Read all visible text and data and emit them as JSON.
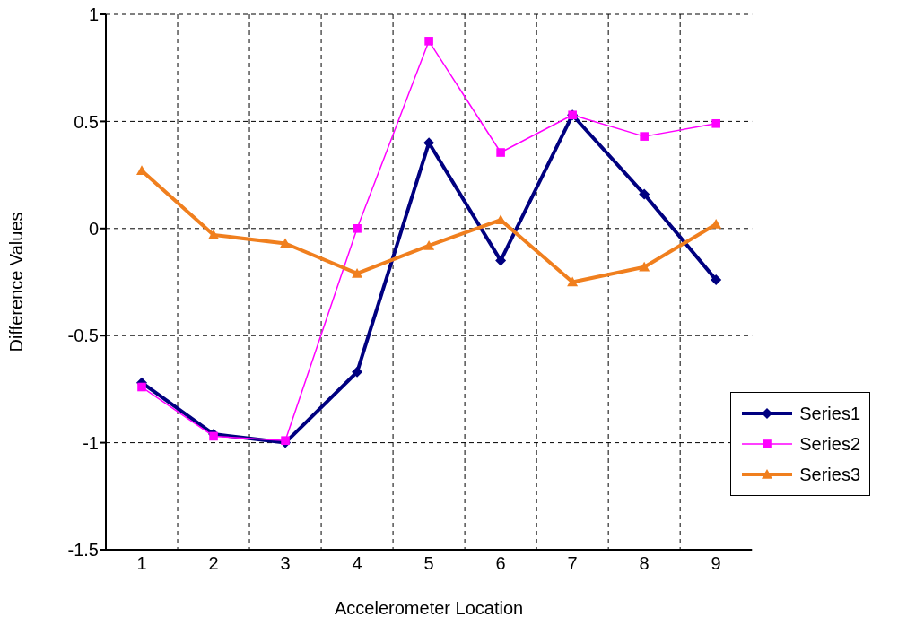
{
  "chart_data": {
    "type": "line",
    "xlabel": "Accelerometer Location",
    "ylabel": "Difference Values",
    "categories": [
      "1",
      "2",
      "3",
      "4",
      "5",
      "6",
      "7",
      "8",
      "9"
    ],
    "series": [
      {
        "name": "Series1",
        "color": "#000080",
        "marker": "diamond",
        "values": [
          -0.72,
          -0.96,
          -1.0,
          -0.67,
          0.4,
          -0.15,
          0.53,
          0.16,
          -0.24
        ]
      },
      {
        "name": "Series2",
        "color": "#ff00ff",
        "marker": "square",
        "values": [
          -0.74,
          -0.97,
          -0.99,
          0.0,
          0.875,
          0.355,
          0.53,
          0.43,
          0.49
        ]
      },
      {
        "name": "Series3",
        "color": "#f07f1e",
        "marker": "triangle",
        "values": [
          0.27,
          -0.03,
          -0.07,
          -0.21,
          -0.08,
          0.04,
          -0.25,
          -0.18,
          0.02
        ]
      }
    ],
    "ylim": [
      -1.5,
      1
    ],
    "yticks": [
      -1.5,
      -1,
      -0.5,
      0,
      0.5,
      1
    ],
    "grid": true,
    "legend": "bottom right",
    "line_style": "solid"
  }
}
